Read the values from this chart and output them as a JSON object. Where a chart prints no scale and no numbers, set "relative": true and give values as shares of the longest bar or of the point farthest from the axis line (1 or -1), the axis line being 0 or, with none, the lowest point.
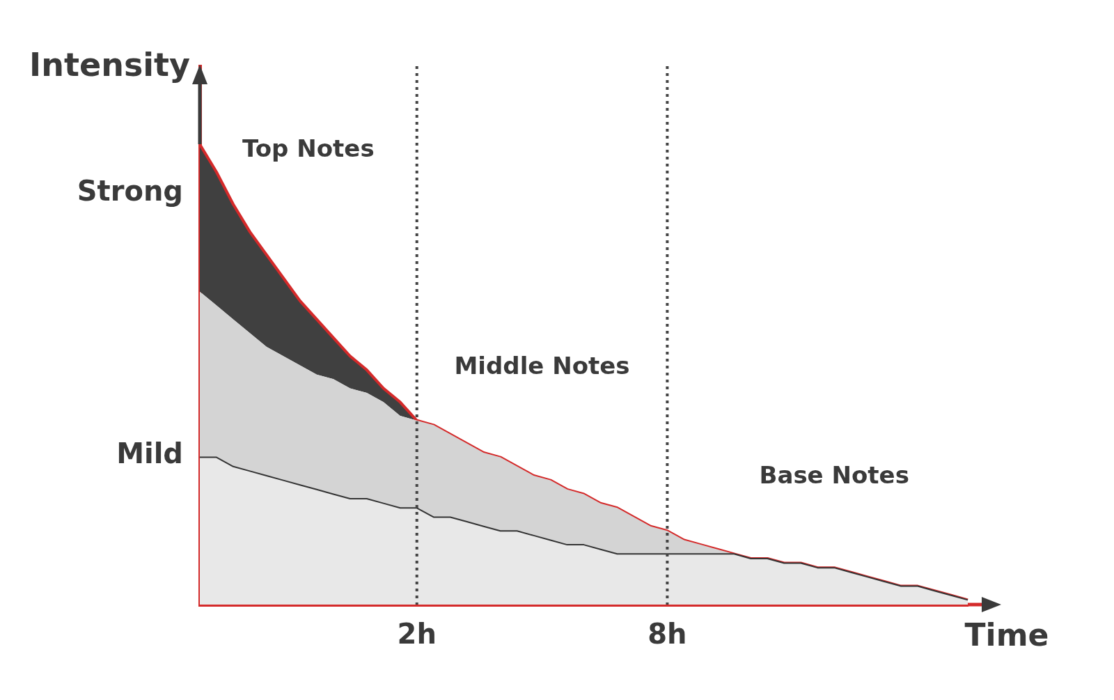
{
  "chart_data": {
    "type": "area",
    "stacked": true,
    "relative": true,
    "xlabel": "Time",
    "ylabel": "Intensity",
    "categories": [
      null,
      null,
      null,
      null,
      null,
      null,
      null,
      null,
      null,
      null,
      null,
      null,
      null,
      "2h",
      null,
      null,
      null,
      null,
      null,
      null,
      null,
      null,
      null,
      null,
      null,
      null,
      null,
      null,
      "8h",
      null,
      null,
      null,
      null,
      null,
      null,
      null,
      null,
      null,
      null,
      null,
      null,
      null,
      null,
      null,
      null,
      null,
      null
    ],
    "series": [
      {
        "color": "#e8e8e8",
        "values": [
          0.32,
          0.32,
          0.3,
          0.29,
          0.28,
          0.27,
          0.26,
          0.25,
          0.24,
          0.23,
          0.23,
          0.22,
          0.21,
          0.21,
          0.19,
          0.19,
          0.18,
          0.17,
          0.16,
          0.16,
          0.15,
          0.14,
          0.13,
          0.13,
          0.12,
          0.11,
          0.11,
          0.11,
          0.11,
          0.11,
          0.11,
          0.11,
          0.11,
          0.1,
          0.1,
          0.09,
          0.09,
          0.08,
          0.08,
          0.07,
          0.06,
          0.05,
          0.04,
          0.04,
          0.03,
          0.02,
          0.01
        ]
      },
      {
        "color": "#d4d4d4",
        "values": [
          0.36,
          0.33,
          0.32,
          0.3,
          0.28,
          0.27,
          0.26,
          0.25,
          0.25,
          0.24,
          0.23,
          0.22,
          0.2,
          0.19,
          0.2,
          0.18,
          0.17,
          0.16,
          0.16,
          0.14,
          0.13,
          0.13,
          0.12,
          0.11,
          0.1,
          0.1,
          0.08,
          0.06,
          0.05,
          0.03,
          0.02,
          0.01,
          0,
          0,
          0,
          0,
          0,
          0,
          0,
          0,
          0,
          0,
          0,
          0,
          0,
          0,
          0
        ]
      },
      {
        "color": "#404040",
        "values": [
          0.32,
          0.29,
          0.25,
          0.22,
          0.2,
          0.17,
          0.14,
          0.12,
          0.09,
          0.07,
          0.05,
          0.03,
          0.03,
          0,
          0,
          0,
          0,
          0,
          0,
          0,
          0,
          0,
          0,
          0,
          0,
          0,
          0,
          0,
          0,
          0,
          0,
          0,
          0,
          0,
          0,
          0,
          0,
          0,
          0,
          0,
          0,
          0,
          0,
          0,
          0,
          0,
          0
        ]
      }
    ],
    "ref_lines": [
      {
        "axis": "x",
        "value": "2h",
        "line_style": "dotted",
        "color": "#444444"
      },
      {
        "axis": "x",
        "value": "8h",
        "line_style": "dotted",
        "color": "#444444"
      }
    ],
    "annotations": [
      "Top Notes",
      "Middle Notes",
      "Base Notes",
      "Strong",
      "Mild"
    ],
    "legend": false,
    "grid": false,
    "marker": "none",
    "line_style": "solid"
  }
}
